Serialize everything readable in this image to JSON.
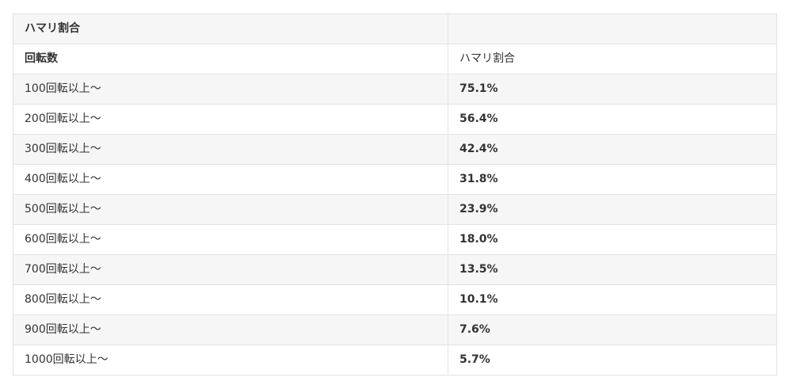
{
  "table": {
    "title_row": [
      "ハマリ割合",
      ""
    ],
    "header_row": [
      "回転数",
      "ハマリ割合"
    ],
    "rows": [
      {
        "spins": "100回転以上～",
        "rate": "75.1%"
      },
      {
        "spins": "200回転以上～",
        "rate": "56.4%"
      },
      {
        "spins": "300回転以上～",
        "rate": "42.4%"
      },
      {
        "spins": "400回転以上～",
        "rate": "31.8%"
      },
      {
        "spins": "500回転以上～",
        "rate": "23.9%"
      },
      {
        "spins": "600回転以上～",
        "rate": "18.0%"
      },
      {
        "spins": "700回転以上～",
        "rate": "13.5%"
      },
      {
        "spins": "800回転以上～",
        "rate": "10.1%"
      },
      {
        "spins": "900回転以上～",
        "rate": "7.6%"
      },
      {
        "spins": "1000回転以上～",
        "rate": "5.7%"
      }
    ]
  },
  "colors": {
    "stripe": "#f6f6f6",
    "border": "#e3e3e3",
    "text": "#333333"
  }
}
